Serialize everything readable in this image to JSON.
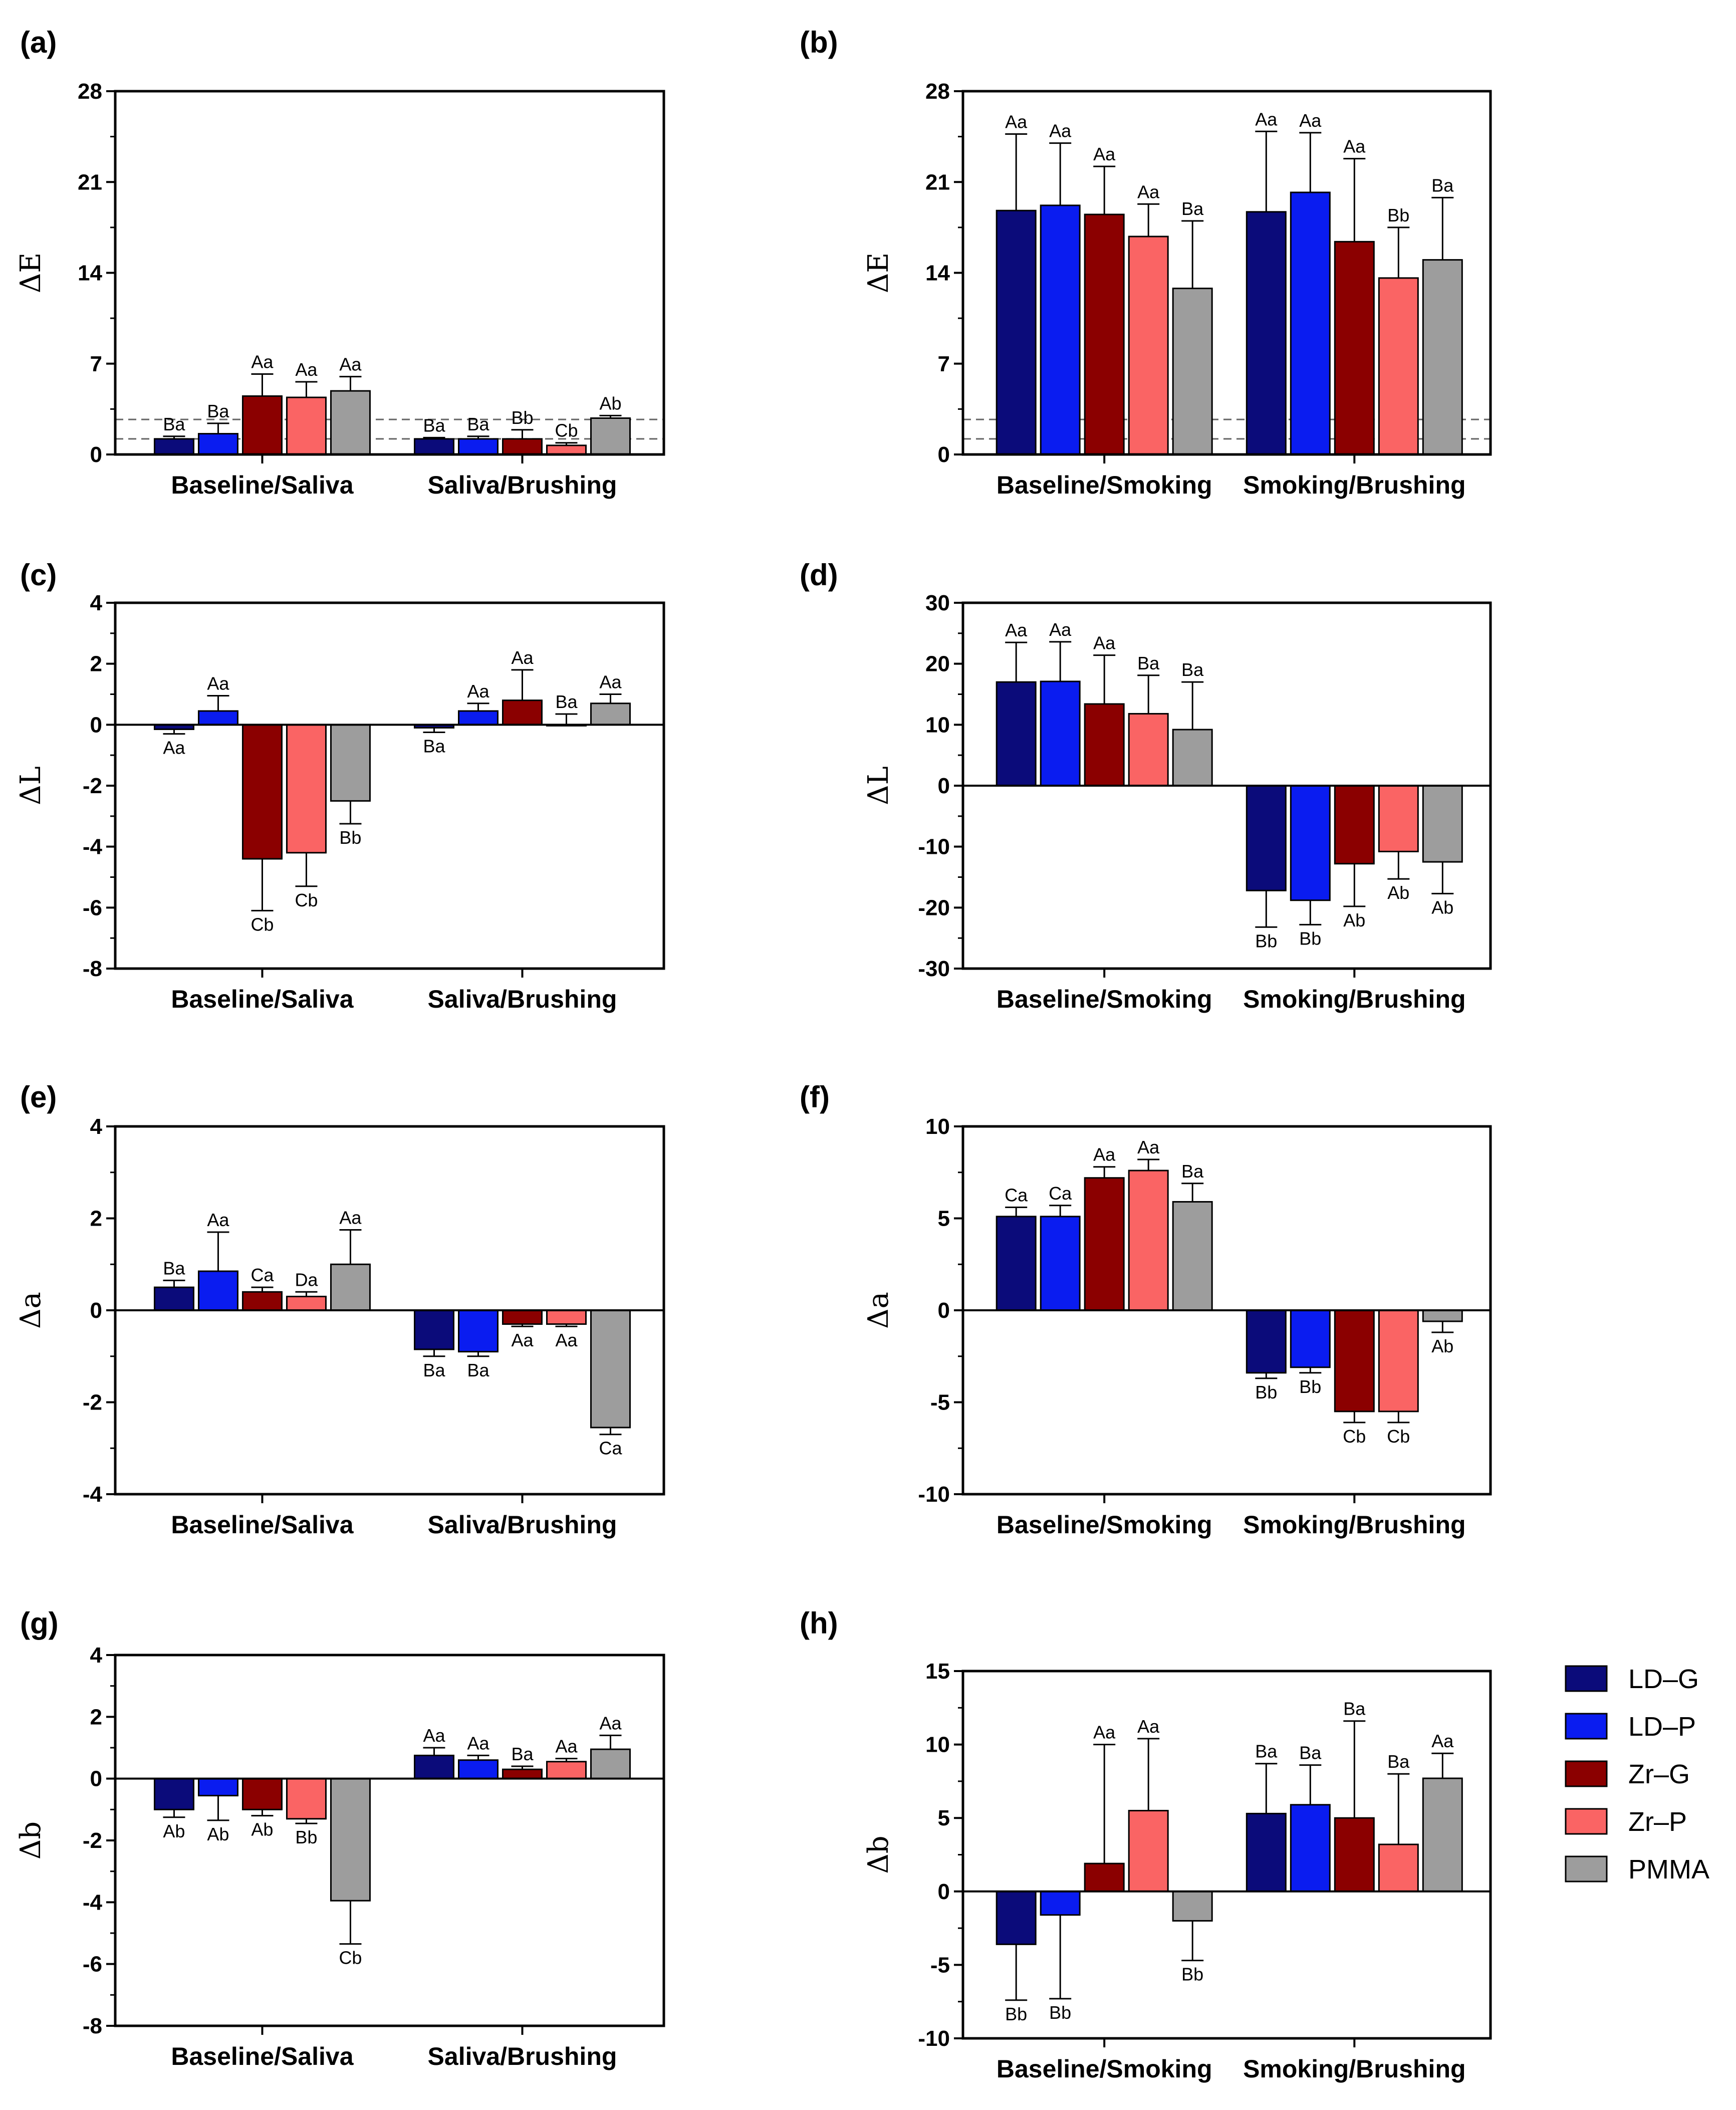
{
  "series_colors": {
    "LD-G": "#0b0b7a",
    "LD-P": "#0a1cf0",
    "Zr-G": "#8b0000",
    "Zr-P": "#fa6464",
    "PMMA": "#9d9d9d"
  },
  "legend": [
    "LD–G",
    "LD–P",
    "Zr–G",
    "Zr–P",
    "PMMA"
  ],
  "chart_data": [
    {
      "panel": "(a)",
      "type": "bar",
      "ylabel": "ΔE",
      "ylim": [
        0,
        28
      ],
      "yticks": [
        "0",
        "7",
        "14",
        "21",
        "28"
      ],
      "categories": [
        "Baseline/Saliva",
        "Saliva/Brushing"
      ],
      "reference_lines": [
        1.2,
        2.7
      ],
      "series": [
        {
          "name": "LD-G",
          "values": [
            1.2,
            1.2
          ],
          "errors": [
            0.2,
            0.1
          ],
          "labels": [
            "Ba",
            "Ba"
          ]
        },
        {
          "name": "LD-P",
          "values": [
            1.6,
            1.2
          ],
          "errors": [
            0.8,
            0.2
          ],
          "labels": [
            "Ba",
            "Ba"
          ]
        },
        {
          "name": "Zr-G",
          "values": [
            4.5,
            1.2
          ],
          "errors": [
            1.7,
            0.7
          ],
          "labels": [
            "Aa",
            "Bb"
          ]
        },
        {
          "name": "Zr-P",
          "values": [
            4.4,
            0.7
          ],
          "errors": [
            1.2,
            0.2
          ],
          "labels": [
            "Aa",
            "Cb"
          ]
        },
        {
          "name": "PMMA",
          "values": [
            4.9,
            2.8
          ],
          "errors": [
            1.1,
            0.2
          ],
          "labels": [
            "Aa",
            "Ab"
          ]
        }
      ]
    },
    {
      "panel": "(b)",
      "type": "bar",
      "ylabel": "ΔE",
      "ylim": [
        0,
        28
      ],
      "yticks": [
        "0",
        "7",
        "14",
        "21",
        "28"
      ],
      "categories": [
        "Baseline/Smoking",
        "Smoking/Brushing"
      ],
      "reference_lines": [
        1.2,
        2.7
      ],
      "series": [
        {
          "name": "LD-G",
          "values": [
            18.8,
            18.7
          ],
          "errors": [
            5.9,
            6.2
          ],
          "labels": [
            "Aa",
            "Aa"
          ]
        },
        {
          "name": "LD-P",
          "values": [
            19.2,
            20.2
          ],
          "errors": [
            4.8,
            4.6
          ],
          "labels": [
            "Aa",
            "Aa"
          ]
        },
        {
          "name": "Zr-G",
          "values": [
            18.5,
            16.4
          ],
          "errors": [
            3.7,
            6.4
          ],
          "labels": [
            "Aa",
            "Aa"
          ]
        },
        {
          "name": "Zr-P",
          "values": [
            16.8,
            13.6
          ],
          "errors": [
            2.5,
            3.9
          ],
          "labels": [
            "Aa",
            "Bb"
          ]
        },
        {
          "name": "PMMA",
          "values": [
            12.8,
            15.0
          ],
          "errors": [
            5.2,
            4.8
          ],
          "labels": [
            "Ba",
            "Ba"
          ]
        }
      ]
    },
    {
      "panel": "(c)",
      "type": "bar",
      "ylabel": "ΔL",
      "ylim": [
        -8,
        4
      ],
      "yticks": [
        "-8",
        "-6",
        "-4",
        "-2",
        "0",
        "2",
        "4"
      ],
      "categories": [
        "Baseline/Saliva",
        "Saliva/Brushing"
      ],
      "series": [
        {
          "name": "LD-G",
          "values": [
            -0.15,
            -0.1
          ],
          "errors": [
            0.15,
            0.15
          ],
          "labels": [
            "Aa",
            "Ba"
          ]
        },
        {
          "name": "LD-P",
          "values": [
            0.45,
            0.45
          ],
          "errors": [
            0.5,
            0.25
          ],
          "labels": [
            "Aa",
            "Aa"
          ]
        },
        {
          "name": "Zr-G",
          "values": [
            -4.4,
            0.8
          ],
          "errors": [
            1.7,
            1.0
          ],
          "labels": [
            "Cb",
            "Aa"
          ]
        },
        {
          "name": "Zr-P",
          "values": [
            -4.2,
            0.0
          ],
          "errors": [
            1.1,
            0.35
          ],
          "labels": [
            "Cb",
            "Ba"
          ]
        },
        {
          "name": "PMMA",
          "values": [
            -2.5,
            0.7
          ],
          "errors": [
            0.75,
            0.3
          ],
          "labels": [
            "Bb",
            "Aa"
          ]
        }
      ]
    },
    {
      "panel": "(d)",
      "type": "bar",
      "ylabel": "ΔL",
      "ylim": [
        -30,
        30
      ],
      "yticks": [
        "-30",
        "-20",
        "-10",
        "0",
        "10",
        "20",
        "30"
      ],
      "categories": [
        "Baseline/Smoking",
        "Smoking/Brushing"
      ],
      "series": [
        {
          "name": "LD-G",
          "values": [
            17.0,
            -17.2
          ],
          "errors": [
            6.5,
            6.0
          ],
          "labels": [
            "Aa",
            "Bb"
          ]
        },
        {
          "name": "LD-P",
          "values": [
            17.1,
            -18.8
          ],
          "errors": [
            6.5,
            4.0
          ],
          "labels": [
            "Aa",
            "Bb"
          ]
        },
        {
          "name": "Zr-G",
          "values": [
            13.4,
            -12.8
          ],
          "errors": [
            8.0,
            7.0
          ],
          "labels": [
            "Aa",
            "Ab"
          ]
        },
        {
          "name": "Zr-P",
          "values": [
            11.8,
            -10.8
          ],
          "errors": [
            6.3,
            4.5
          ],
          "labels": [
            "Ba",
            "Ab"
          ]
        },
        {
          "name": "PMMA",
          "values": [
            9.2,
            -12.5
          ],
          "errors": [
            7.8,
            5.2
          ],
          "labels": [
            "Ba",
            "Ab"
          ]
        }
      ]
    },
    {
      "panel": "(e)",
      "type": "bar",
      "ylabel": "Δa",
      "ylim": [
        -4,
        4
      ],
      "yticks": [
        "-4",
        "-2",
        "0",
        "2",
        "4"
      ],
      "categories": [
        "Baseline/Saliva",
        "Saliva/Brushing"
      ],
      "series": [
        {
          "name": "LD-G",
          "values": [
            0.5,
            -0.85
          ],
          "errors": [
            0.15,
            0.15
          ],
          "labels": [
            "Ba",
            "Ba"
          ]
        },
        {
          "name": "LD-P",
          "values": [
            0.85,
            -0.9
          ],
          "errors": [
            0.85,
            0.1
          ],
          "labels": [
            "Aa",
            "Ba"
          ]
        },
        {
          "name": "Zr-G",
          "values": [
            0.4,
            -0.3
          ],
          "errors": [
            0.1,
            0.05
          ],
          "labels": [
            "Ca",
            "Aa"
          ]
        },
        {
          "name": "Zr-P",
          "values": [
            0.3,
            -0.3
          ],
          "errors": [
            0.1,
            0.05
          ],
          "labels": [
            "Da",
            "Aa"
          ]
        },
        {
          "name": "PMMA",
          "values": [
            1.0,
            -2.55
          ],
          "errors": [
            0.75,
            0.15
          ],
          "labels": [
            "Aa",
            "Ca"
          ]
        }
      ]
    },
    {
      "panel": "(f)",
      "type": "bar",
      "ylabel": "Δa",
      "ylim": [
        -10,
        10
      ],
      "yticks": [
        "-10",
        "-5",
        "0",
        "5",
        "10"
      ],
      "categories": [
        "Baseline/Smoking",
        "Smoking/Brushing"
      ],
      "series": [
        {
          "name": "LD-G",
          "values": [
            5.1,
            -3.4
          ],
          "errors": [
            0.5,
            0.3
          ],
          "labels": [
            "Ca",
            "Bb"
          ]
        },
        {
          "name": "LD-P",
          "values": [
            5.1,
            -3.1
          ],
          "errors": [
            0.6,
            0.3
          ],
          "labels": [
            "Ca",
            "Bb"
          ]
        },
        {
          "name": "Zr-G",
          "values": [
            7.2,
            -5.5
          ],
          "errors": [
            0.6,
            0.6
          ],
          "labels": [
            "Aa",
            "Cb"
          ]
        },
        {
          "name": "Zr-P",
          "values": [
            7.6,
            -5.5
          ],
          "errors": [
            0.6,
            0.6
          ],
          "labels": [
            "Aa",
            "Cb"
          ]
        },
        {
          "name": "PMMA",
          "values": [
            5.9,
            -0.6
          ],
          "errors": [
            1.0,
            0.6
          ],
          "labels": [
            "Ba",
            "Ab"
          ]
        }
      ]
    },
    {
      "panel": "(g)",
      "type": "bar",
      "ylabel": "Δb",
      "ylim": [
        -8,
        4
      ],
      "yticks": [
        "-8",
        "-6",
        "-4",
        "-2",
        "0",
        "2",
        "4"
      ],
      "categories": [
        "Baseline/Saliva",
        "Saliva/Brushing"
      ],
      "series": [
        {
          "name": "LD-G",
          "values": [
            -1.0,
            0.75
          ],
          "errors": [
            0.25,
            0.25
          ],
          "labels": [
            "Ab",
            "Aa"
          ]
        },
        {
          "name": "LD-P",
          "values": [
            -0.55,
            0.6
          ],
          "errors": [
            0.8,
            0.15
          ],
          "labels": [
            "Ab",
            "Aa"
          ]
        },
        {
          "name": "Zr-G",
          "values": [
            -1.0,
            0.3
          ],
          "errors": [
            0.2,
            0.1
          ],
          "labels": [
            "Ab",
            "Ba"
          ]
        },
        {
          "name": "Zr-P",
          "values": [
            -1.3,
            0.55
          ],
          "errors": [
            0.15,
            0.1
          ],
          "labels": [
            "Bb",
            "Aa"
          ]
        },
        {
          "name": "PMMA",
          "values": [
            -3.95,
            0.95
          ],
          "errors": [
            1.4,
            0.45
          ],
          "labels": [
            "Cb",
            "Aa"
          ]
        }
      ]
    },
    {
      "panel": "(h)",
      "type": "bar",
      "ylabel": "Δb",
      "ylim": [
        -10,
        15
      ],
      "yticks": [
        "-10",
        "-5",
        "0",
        "5",
        "10",
        "15"
      ],
      "categories": [
        "Baseline/Smoking",
        "Smoking/Brushing"
      ],
      "series": [
        {
          "name": "LD-G",
          "values": [
            -3.6,
            5.3
          ],
          "errors": [
            3.8,
            3.4
          ],
          "labels": [
            "Bb",
            "Ba"
          ]
        },
        {
          "name": "LD-P",
          "values": [
            -1.6,
            5.9
          ],
          "errors": [
            5.7,
            2.7
          ],
          "labels": [
            "Bb",
            "Ba"
          ]
        },
        {
          "name": "Zr-G",
          "values": [
            1.9,
            5.0
          ],
          "errors": [
            8.1,
            6.6
          ],
          "labels": [
            "Aa",
            "Ba"
          ]
        },
        {
          "name": "Zr-P",
          "values": [
            5.5,
            3.2
          ],
          "errors": [
            4.9,
            4.8
          ],
          "labels": [
            "Aa",
            "Ba"
          ]
        },
        {
          "name": "PMMA",
          "values": [
            -2.0,
            7.7
          ],
          "errors": [
            2.7,
            1.7
          ],
          "labels": [
            "Bb",
            "Aa"
          ]
        }
      ]
    }
  ]
}
